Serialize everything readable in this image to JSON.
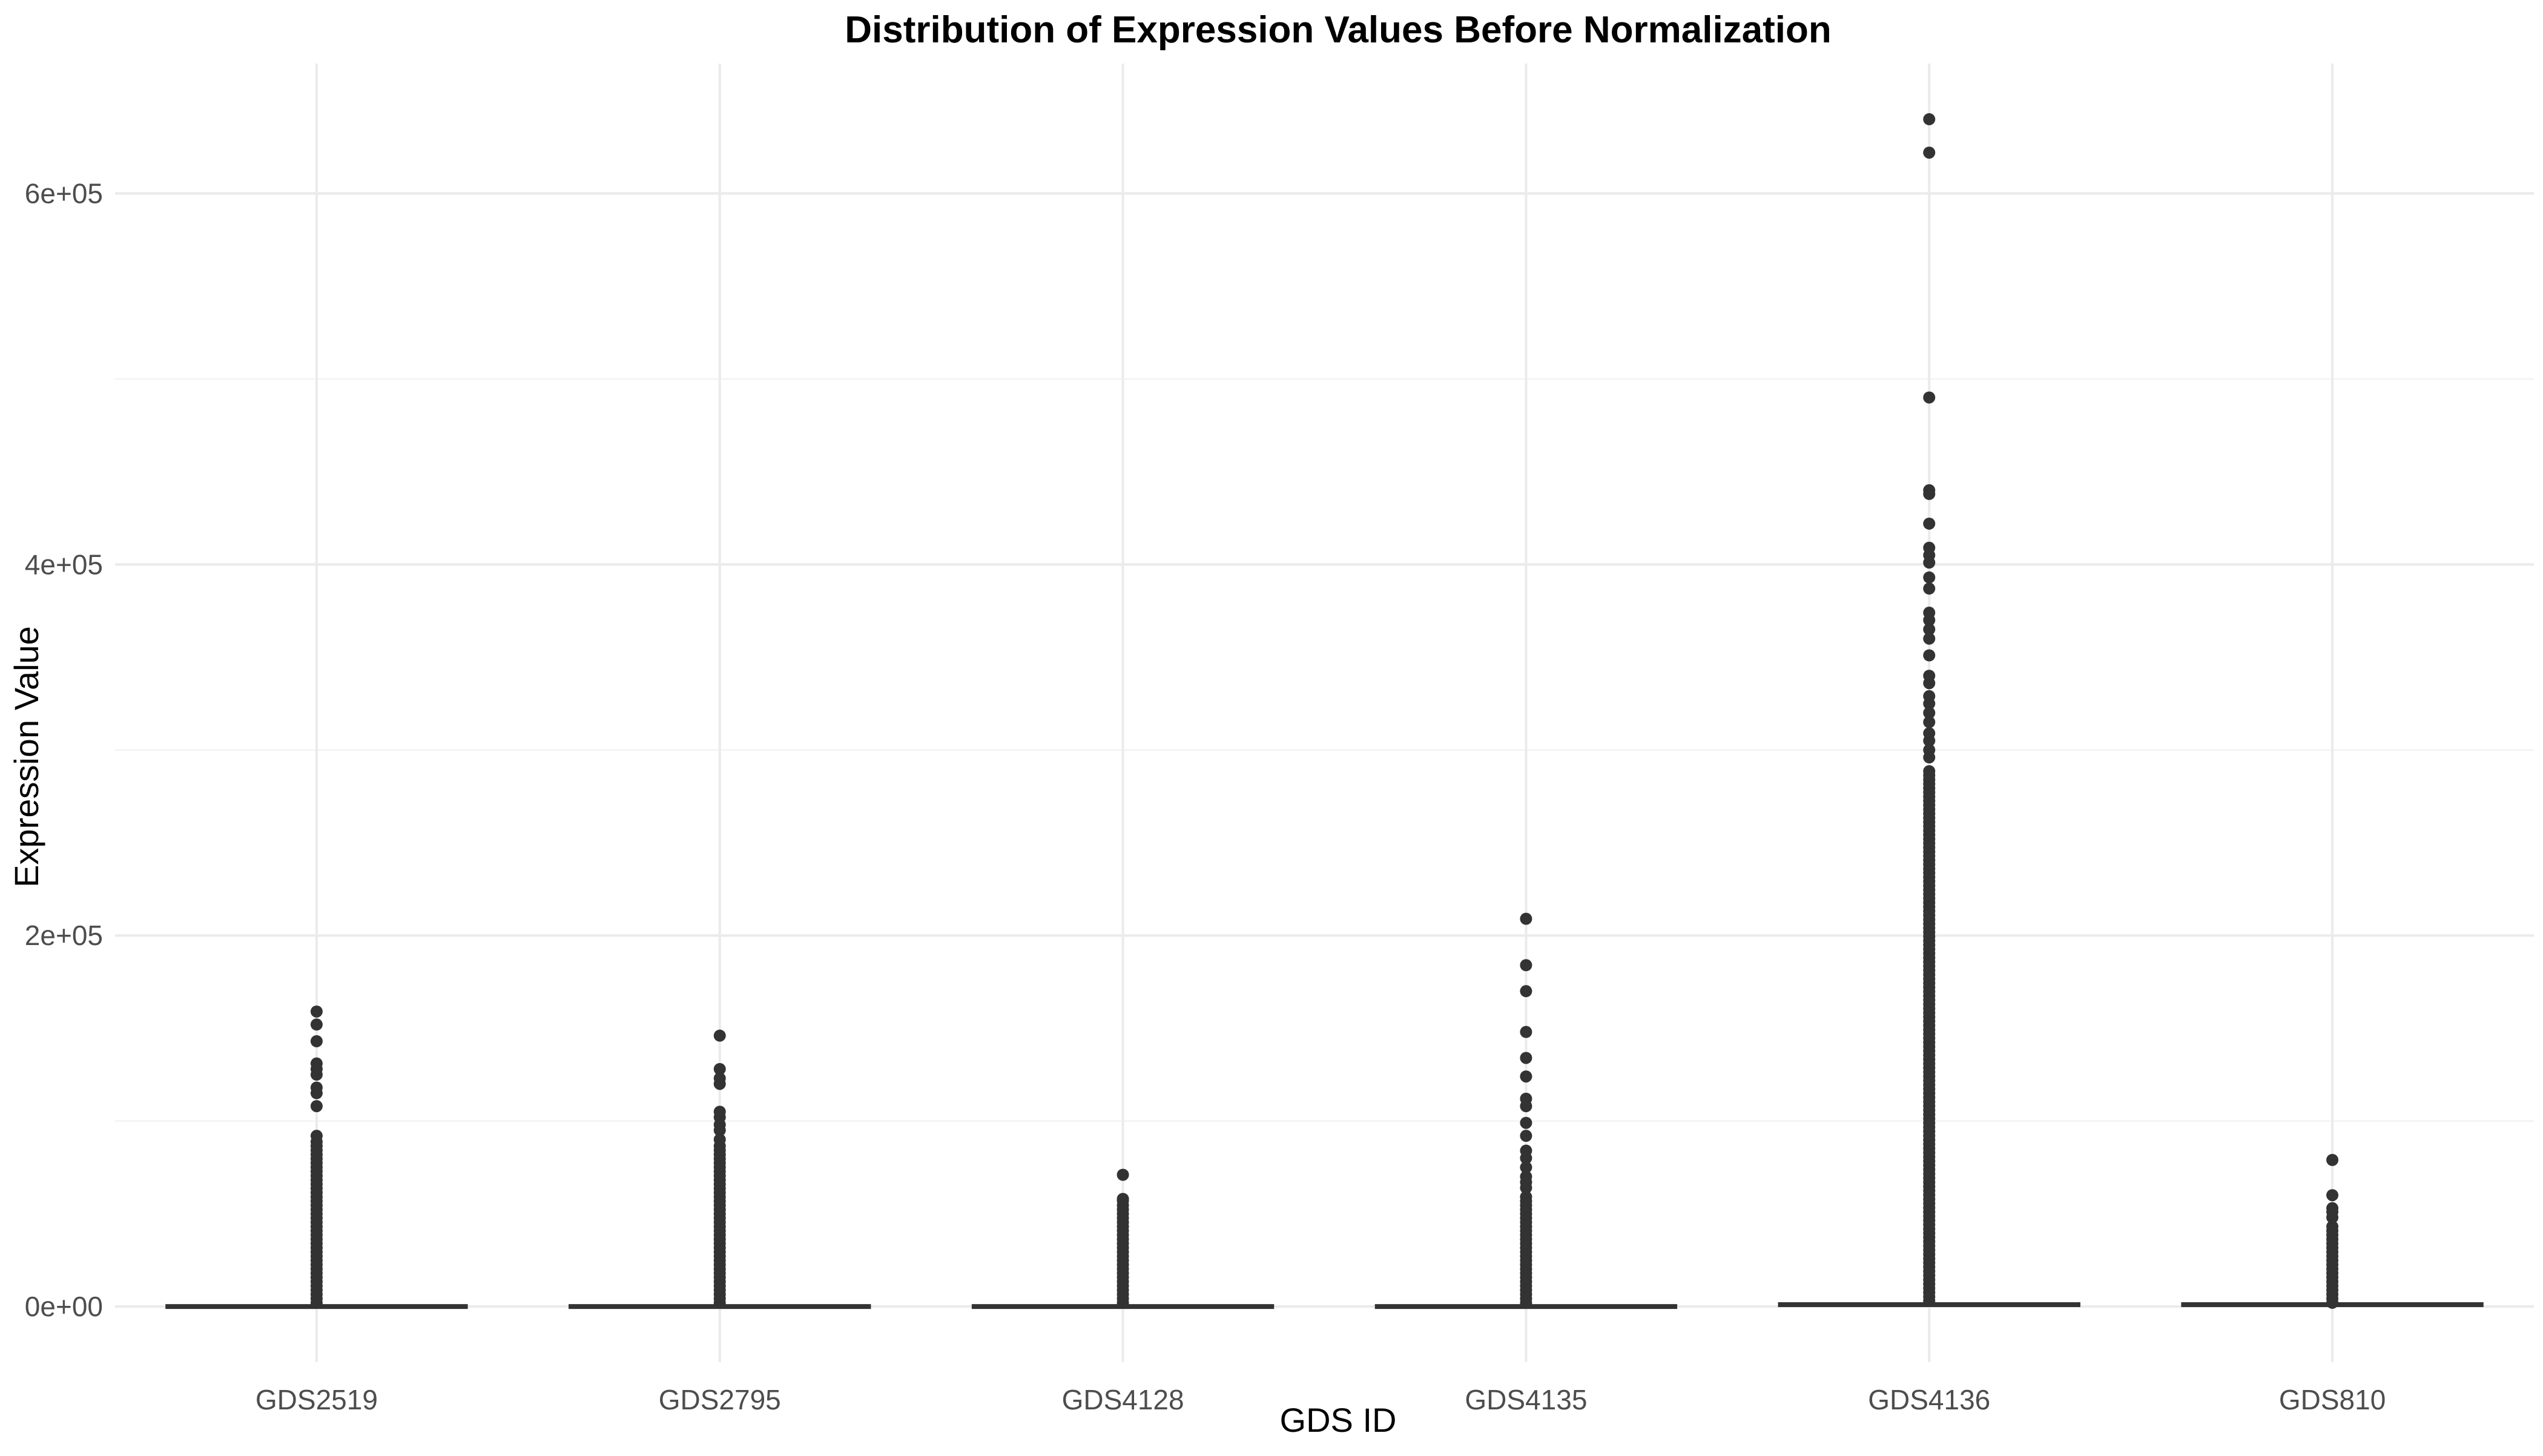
{
  "chart_data": {
    "type": "box",
    "title": "Distribution of Expression Values Before Normalization",
    "xlabel": "GDS ID",
    "ylabel": "Expression Value",
    "ylim": [
      -30000,
      670000
    ],
    "y_ticks": [
      {
        "value": 0,
        "label": "0e+00"
      },
      {
        "value": 200000,
        "label": "2e+05"
      },
      {
        "value": 400000,
        "label": "4e+05"
      },
      {
        "value": 600000,
        "label": "6e+05"
      }
    ],
    "y_minor_ticks": [
      100000,
      300000,
      500000
    ],
    "grid": true,
    "legend": "none",
    "colors": {
      "box": "#333333",
      "outlier": "#333333",
      "grid_major": "#ebebeb",
      "grid_minor": "#f2f2f2"
    },
    "categories": [
      "GDS2519",
      "GDS2795",
      "GDS4128",
      "GDS4135",
      "GDS4136",
      "GDS810"
    ],
    "boxes": [
      {
        "category": "GDS2519",
        "median": 0,
        "outlier_range": [
          2000,
          90000
        ],
        "outliers": [
          159000,
          152000,
          143000,
          131000,
          128000,
          125000,
          118000,
          115000,
          108000,
          92000
        ]
      },
      {
        "category": "GDS2795",
        "median": 0,
        "outlier_range": [
          2000,
          88000
        ],
        "outliers": [
          146000,
          128000,
          123000,
          120000,
          105000,
          102000,
          98000,
          95000,
          90000
        ]
      },
      {
        "category": "GDS4128",
        "median": 0,
        "outlier_range": [
          2000,
          55000
        ],
        "outliers": [
          71000,
          58000,
          57000
        ]
      },
      {
        "category": "GDS4135",
        "median": 0,
        "outlier_range": [
          2000,
          60000
        ],
        "outliers": [
          209000,
          184000,
          170000,
          148000,
          134000,
          124000,
          112000,
          108000,
          99000,
          92000,
          84000,
          80000,
          75000,
          70000,
          67000,
          64000
        ]
      },
      {
        "category": "GDS4136",
        "median": 1000,
        "outlier_range": [
          3000,
          290000
        ],
        "outliers": [
          640000,
          622000,
          490000,
          440000,
          438000,
          422000,
          409000,
          405000,
          401000,
          393000,
          387000,
          374000,
          370000,
          365000,
          360000,
          351000,
          340000,
          336000,
          329000,
          325000,
          320000,
          315000,
          309000,
          305000,
          300000,
          296000
        ]
      },
      {
        "category": "GDS810",
        "median": 1000,
        "outlier_range": [
          2000,
          45000
        ],
        "outliers": [
          79000,
          60000,
          53000,
          51000,
          48000
        ]
      }
    ]
  }
}
